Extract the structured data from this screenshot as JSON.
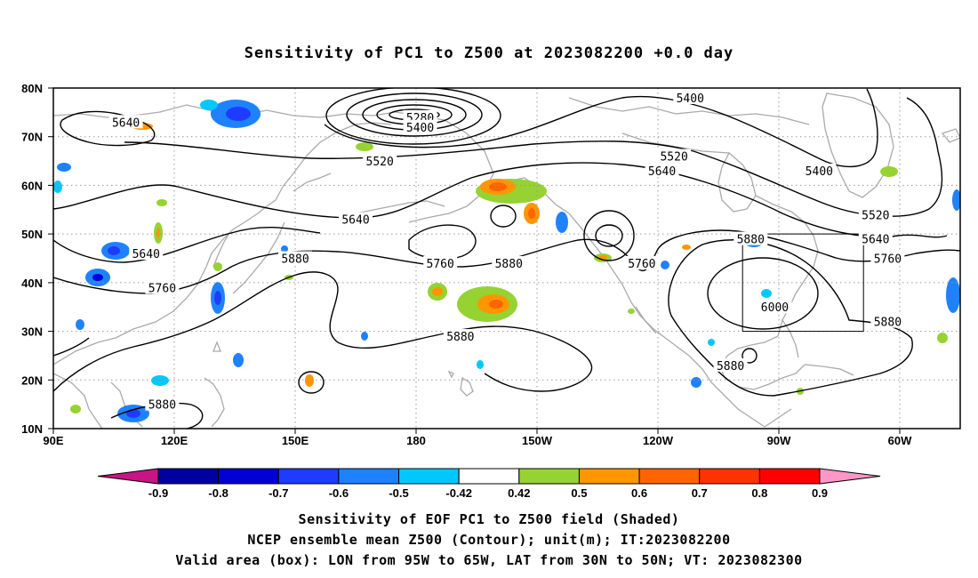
{
  "title": "Sensitivity of PC1 to Z500 at 2023082200 +0.0 day",
  "map": {
    "lat_labels": [
      "80N",
      "70N",
      "60N",
      "50N",
      "40N",
      "30N",
      "20N",
      "10N"
    ],
    "lon_labels": [
      "90E",
      "120E",
      "150E",
      "180",
      "150W",
      "120W",
      "90W",
      "60W"
    ],
    "lon_range": [
      "90E",
      "45W"
    ],
    "lat_range": [
      "10N",
      "80N"
    ],
    "gridlines": "dotted",
    "coastline_color": "#aaaaaa",
    "contour_color": "#000000",
    "contour_labels": [
      {
        "text": "5640",
        "lon": 108,
        "lat": 73
      },
      {
        "text": "5280",
        "lon": -179,
        "lat": 74
      },
      {
        "text": "5400",
        "lon": -179,
        "lat": 72
      },
      {
        "text": "5400",
        "lon": -112,
        "lat": 78
      },
      {
        "text": "5520",
        "lon": 171,
        "lat": 65
      },
      {
        "text": "5520",
        "lon": -116,
        "lat": 66
      },
      {
        "text": "5640",
        "lon": -119,
        "lat": 63
      },
      {
        "text": "5400",
        "lon": -80,
        "lat": 63
      },
      {
        "text": "5640",
        "lon": 165,
        "lat": 53
      },
      {
        "text": "5520",
        "lon": -66,
        "lat": 54
      },
      {
        "text": "5880",
        "lon": -97,
        "lat": 49
      },
      {
        "text": "5640",
        "lon": -66,
        "lat": 49
      },
      {
        "text": "5640",
        "lon": 113,
        "lat": 46
      },
      {
        "text": "5880",
        "lon": 150,
        "lat": 45
      },
      {
        "text": "5760",
        "lon": -174,
        "lat": 44
      },
      {
        "text": "5880",
        "lon": -157,
        "lat": 44
      },
      {
        "text": "5760",
        "lon": -124,
        "lat": 44
      },
      {
        "text": "5760",
        "lon": -63,
        "lat": 45
      },
      {
        "text": "5760",
        "lon": 117,
        "lat": 39
      },
      {
        "text": "6000",
        "lon": -91,
        "lat": 35
      },
      {
        "text": "5880",
        "lon": -63,
        "lat": 32
      },
      {
        "text": "5880",
        "lon": -169,
        "lat": 29
      },
      {
        "text": "5880",
        "lon": -102,
        "lat": 23
      },
      {
        "text": "5880",
        "lon": 117,
        "lat": 15
      }
    ],
    "valid_box": {
      "lon_west": -95,
      "lon_east": -65,
      "lat_south": 30,
      "lat_north": 50
    }
  },
  "colorbar": {
    "labels": [
      "-0.9",
      "-0.8",
      "-0.7",
      "-0.6",
      "-0.5",
      "-0.42",
      "0.42",
      "0.5",
      "0.6",
      "0.7",
      "0.8",
      "0.9"
    ],
    "colors": [
      "#c71585",
      "#0000a0",
      "#0000d2",
      "#1e3cff",
      "#1e82ff",
      "#00c8ff",
      "#ffffff",
      "#96d232",
      "#ff9600",
      "#ff6400",
      "#ff3200",
      "#ff0000",
      "#ff96c8"
    ]
  },
  "captions": {
    "line1": "Sensitivity of EOF PC1 to Z500 field (Shaded)",
    "line2": "NCEP ensemble mean Z500 (Contour); unit(m); IT:2023082200",
    "line3": "Valid area (box): LON from 95W to 65W, LAT from 30N to 50N; VT: 2023082300"
  }
}
